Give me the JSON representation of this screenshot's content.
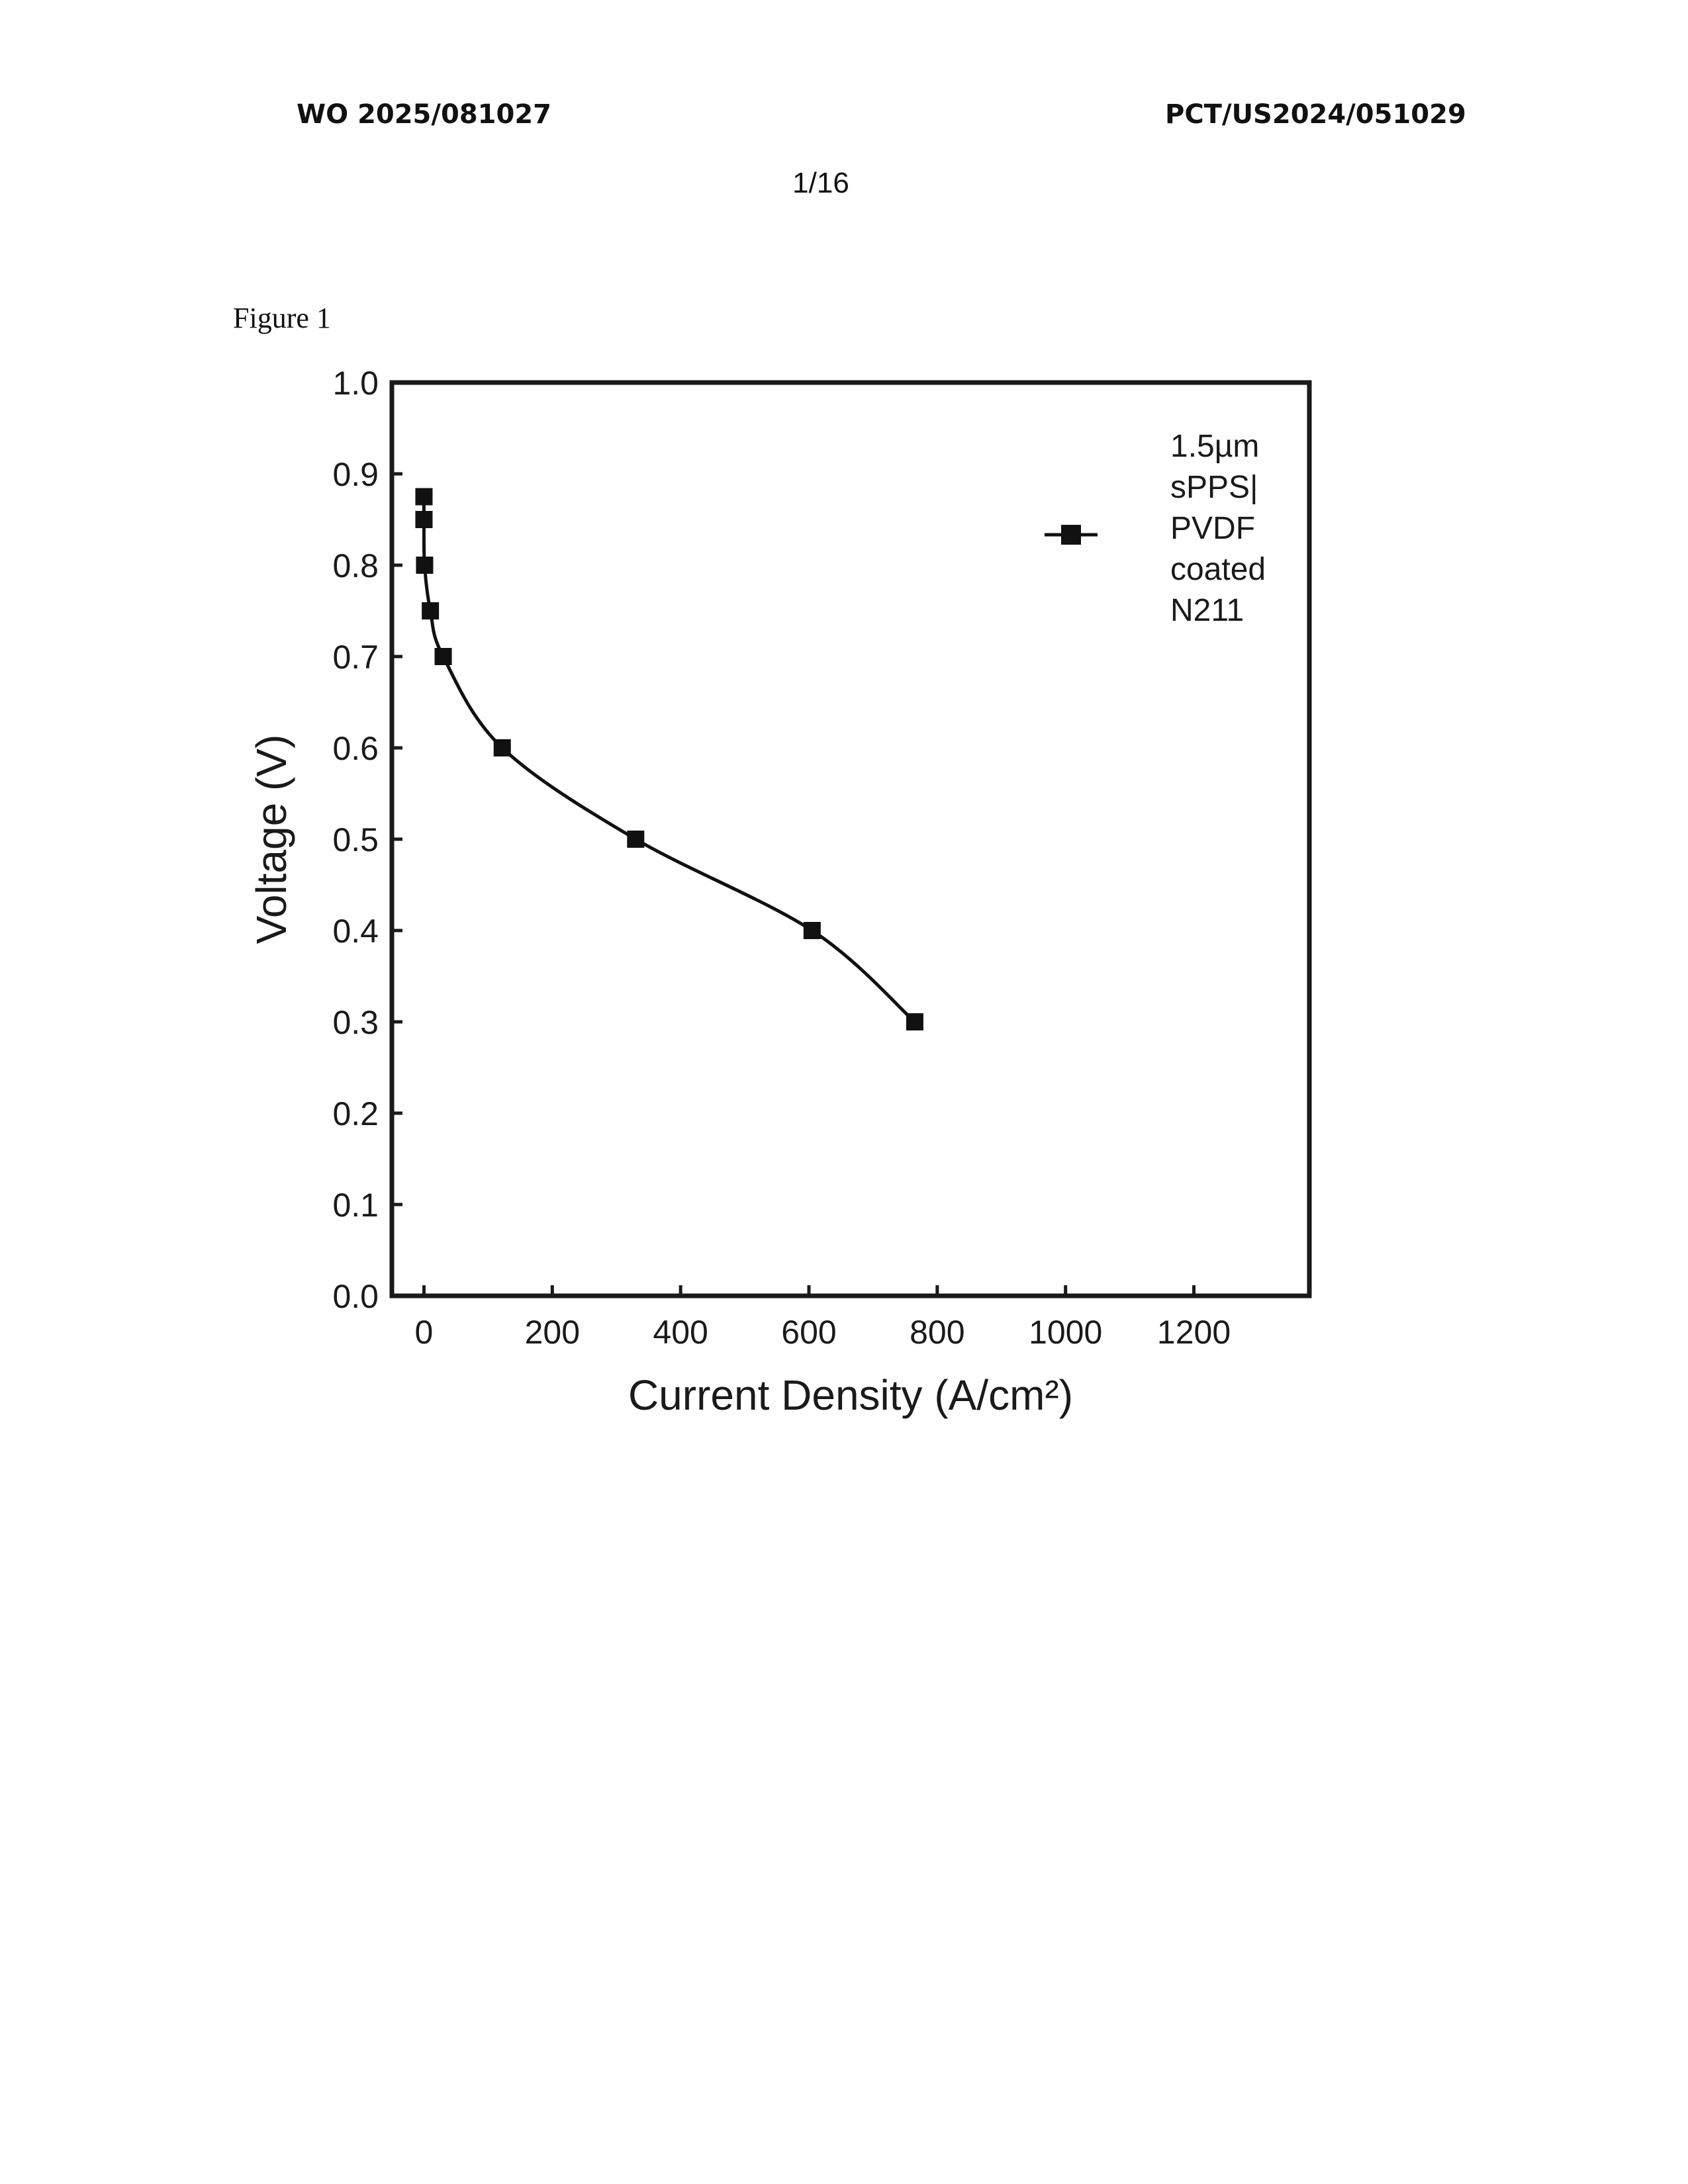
{
  "header": {
    "left_text": "WO 2025/081027",
    "right_text": "PCT/US2024/051029",
    "page_number": "1/16"
  },
  "figure_label": "Figure 1",
  "chart_data": {
    "type": "line",
    "title": "",
    "xlabel": "Current Density (A/cm²)",
    "ylabel": "Voltage (V)",
    "xlim": [
      -50,
      1380
    ],
    "ylim": [
      0.0,
      1.0
    ],
    "xticks": [
      0,
      200,
      400,
      600,
      800,
      1000,
      1200
    ],
    "xtick_labels": [
      "0",
      "200",
      "400",
      "600",
      "800",
      "1000",
      "1200"
    ],
    "yticks": [
      0.0,
      0.1,
      0.2,
      0.3,
      0.4,
      0.5,
      0.6,
      0.7,
      0.8,
      0.9,
      1.0
    ],
    "ytick_labels": [
      "0.0",
      "0.1",
      "0.2",
      "0.3",
      "0.4",
      "0.5",
      "0.6",
      "0.7",
      "0.8",
      "0.9",
      "1.0"
    ],
    "grid": false,
    "legend_position": "top-right",
    "legend_lines": [
      "1.5µm",
      "sPPS|",
      "PVDF",
      "coated",
      "N211"
    ],
    "series": [
      {
        "name": "1.5µm sPPS| PVDF coated N211",
        "color": "#111111",
        "marker": "square",
        "x": [
          0,
          0,
          1,
          10,
          30,
          122,
          330,
          605,
          765
        ],
        "y": [
          0.875,
          0.85,
          0.8,
          0.75,
          0.7,
          0.6,
          0.5,
          0.4,
          0.3
        ]
      }
    ]
  }
}
